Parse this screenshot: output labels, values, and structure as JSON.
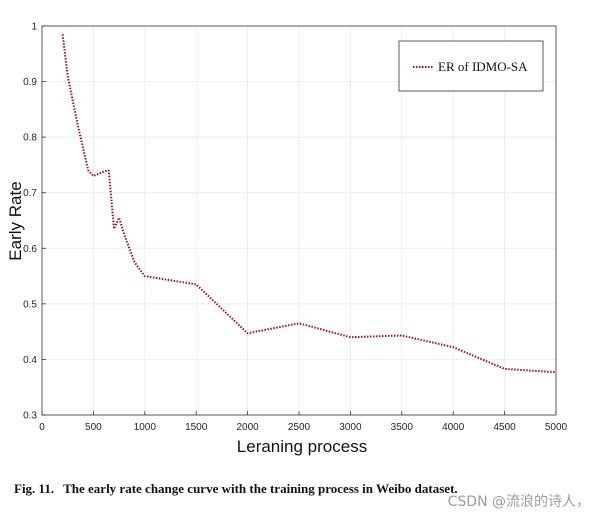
{
  "chart_data": {
    "type": "line",
    "title": "",
    "xlabel": "Leraning process",
    "ylabel": "Early Rate",
    "xlim": [
      0,
      5000
    ],
    "ylim": [
      0.3,
      1.0
    ],
    "xticks": [
      0,
      500,
      1000,
      1500,
      2000,
      2500,
      3000,
      3500,
      4000,
      4500,
      5000
    ],
    "yticks": [
      0.3,
      0.4,
      0.5,
      0.6,
      0.7,
      0.8,
      0.9,
      1
    ],
    "grid": true,
    "legend_position": "top-right",
    "series": [
      {
        "name": "ER of IDMO-SA",
        "color": "#a01020",
        "style": "dotted",
        "x": [
          200,
          250,
          300,
          350,
          400,
          450,
          500,
          600,
          650,
          700,
          750,
          800,
          850,
          900,
          1000,
          1500,
          2000,
          2500,
          3000,
          3500,
          4000,
          4500,
          5000
        ],
        "y": [
          0.985,
          0.91,
          0.865,
          0.82,
          0.78,
          0.74,
          0.73,
          0.738,
          0.74,
          0.635,
          0.655,
          0.625,
          0.6,
          0.575,
          0.55,
          0.535,
          0.447,
          0.465,
          0.44,
          0.443,
          0.422,
          0.383,
          0.377
        ]
      }
    ]
  },
  "caption": {
    "fig_label": "Fig. 11.",
    "text": "The early rate change curve with the training process in Weibo dataset."
  },
  "watermark": "CSDN @流浪的诗人，"
}
